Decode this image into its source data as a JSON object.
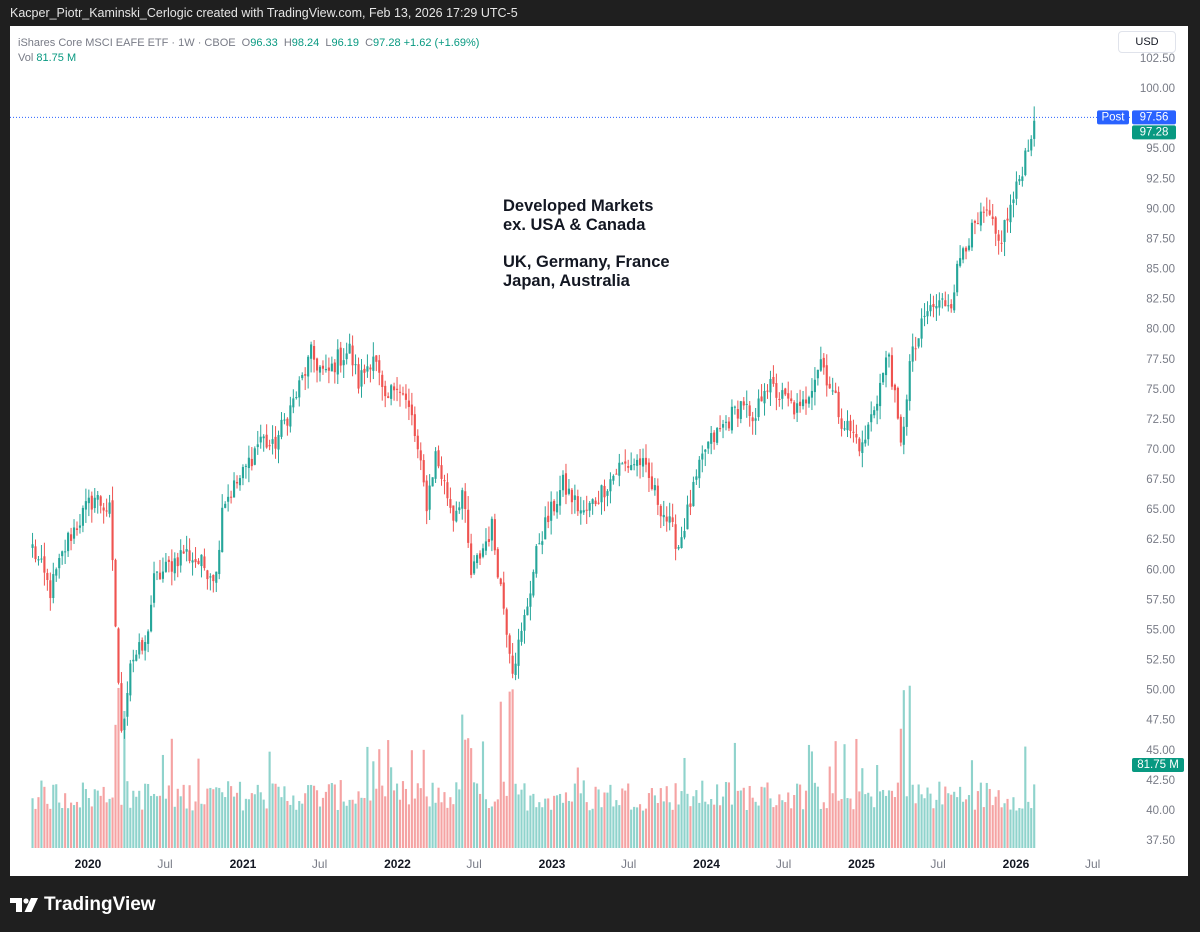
{
  "header": {
    "attribution": "Kacper_Piotr_Kaminski_Cerlogic created with TradingView.com, Feb 13, 2026 17:29 UTC-5"
  },
  "legend": {
    "symbol": "iShares Core MSCI EAFE ETF · 1W · CBOE",
    "open_label": "O",
    "open": "96.33",
    "high_label": "H",
    "high": "98.24",
    "low_label": "L",
    "low": "96.19",
    "close_label": "C",
    "close": "97.28",
    "change": "+1.62 (+1.69%)",
    "vol_label": "Vol",
    "vol": "81.75 M"
  },
  "currency_button": "USD",
  "annotation": {
    "line1": "Developed Markets",
    "line2": "ex. USA & Canada",
    "line3": "UK, Germany, France",
    "line4": "Japan, Australia"
  },
  "price_labels": {
    "post_tag": "Post",
    "post_value": "97.56",
    "last_value": "97.28",
    "volume_value": "81.75 M"
  },
  "footer": {
    "brand": "TradingView"
  },
  "colors": {
    "up": "#26a69a",
    "down": "#ef5350",
    "up_volume": "#8fd3cc",
    "down_volume": "#f5a3a3",
    "post_badge": "#2962ff",
    "last_badge": "#089981"
  },
  "chart_data": {
    "type": "candlestick",
    "interval": "1W",
    "y_axis": {
      "min": 37.5,
      "max": 102.5,
      "step": 2.5,
      "ticks": [
        "102.50",
        "100.00",
        "97.50",
        "95.00",
        "92.50",
        "90.00",
        "87.50",
        "85.00",
        "82.50",
        "80.00",
        "77.50",
        "75.00",
        "72.50",
        "70.00",
        "67.50",
        "65.00",
        "62.50",
        "60.00",
        "57.50",
        "55.00",
        "52.50",
        "50.00",
        "47.50",
        "45.00",
        "42.50",
        "40.00",
        "37.50"
      ]
    },
    "x_axis": {
      "ticks": [
        {
          "label": "2020",
          "date": "2020-01-01",
          "bold": true
        },
        {
          "label": "Jul",
          "date": "2020-07-01",
          "bold": false
        },
        {
          "label": "2021",
          "date": "2021-01-01",
          "bold": true
        },
        {
          "label": "Jul",
          "date": "2021-07-01",
          "bold": false
        },
        {
          "label": "2022",
          "date": "2022-01-01",
          "bold": true
        },
        {
          "label": "Jul",
          "date": "2022-07-01",
          "bold": false
        },
        {
          "label": "2023",
          "date": "2023-01-01",
          "bold": true
        },
        {
          "label": "Jul",
          "date": "2023-07-01",
          "bold": false
        },
        {
          "label": "2024",
          "date": "2024-01-01",
          "bold": true
        },
        {
          "label": "Jul",
          "date": "2024-07-01",
          "bold": false
        },
        {
          "label": "2025",
          "date": "2025-01-01",
          "bold": true
        },
        {
          "label": "Jul",
          "date": "2025-07-01",
          "bold": false
        },
        {
          "label": "2026",
          "date": "2026-01-01",
          "bold": true
        },
        {
          "label": "Jul",
          "date": "2026-07-01",
          "bold": false
        }
      ]
    },
    "grid": false,
    "price_anchors": [
      {
        "date": "2019-08-23",
        "price": 61.8
      },
      {
        "date": "2019-10-04",
        "price": 58.2
      },
      {
        "date": "2019-11-15",
        "price": 62.5
      },
      {
        "date": "2019-12-27",
        "price": 65.0
      },
      {
        "date": "2020-01-17",
        "price": 66.0
      },
      {
        "date": "2020-02-21",
        "price": 64.8
      },
      {
        "date": "2020-03-20",
        "price": 46.0
      },
      {
        "date": "2020-04-10",
        "price": 52.5
      },
      {
        "date": "2020-05-15",
        "price": 53.5
      },
      {
        "date": "2020-06-05",
        "price": 59.0
      },
      {
        "date": "2020-08-14",
        "price": 61.5
      },
      {
        "date": "2020-10-30",
        "price": 59.5
      },
      {
        "date": "2020-11-13",
        "price": 65.5
      },
      {
        "date": "2020-12-31",
        "price": 67.8
      },
      {
        "date": "2021-02-12",
        "price": 71.0
      },
      {
        "date": "2021-03-12",
        "price": 70.0
      },
      {
        "date": "2021-05-07",
        "price": 74.5
      },
      {
        "date": "2021-06-11",
        "price": 77.8
      },
      {
        "date": "2021-07-16",
        "price": 76.0
      },
      {
        "date": "2021-08-13",
        "price": 77.5
      },
      {
        "date": "2021-09-10",
        "price": 78.2
      },
      {
        "date": "2021-10-01",
        "price": 75.5
      },
      {
        "date": "2021-11-05",
        "price": 78.0
      },
      {
        "date": "2021-12-03",
        "price": 73.5
      },
      {
        "date": "2021-12-31",
        "price": 75.8
      },
      {
        "date": "2022-02-04",
        "price": 72.5
      },
      {
        "date": "2022-03-11",
        "price": 65.5
      },
      {
        "date": "2022-04-01",
        "price": 69.5
      },
      {
        "date": "2022-05-13",
        "price": 64.5
      },
      {
        "date": "2022-06-03",
        "price": 66.5
      },
      {
        "date": "2022-06-24",
        "price": 59.5
      },
      {
        "date": "2022-08-12",
        "price": 63.5
      },
      {
        "date": "2022-09-30",
        "price": 52.0
      },
      {
        "date": "2022-10-21",
        "price": 54.5
      },
      {
        "date": "2022-12-02",
        "price": 62.5
      },
      {
        "date": "2023-01-27",
        "price": 67.0
      },
      {
        "date": "2023-03-17",
        "price": 64.5
      },
      {
        "date": "2023-06-09",
        "price": 68.5
      },
      {
        "date": "2023-07-28",
        "price": 69.0
      },
      {
        "date": "2023-10-27",
        "price": 62.0
      },
      {
        "date": "2023-12-29",
        "price": 70.0
      },
      {
        "date": "2024-03-29",
        "price": 74.0
      },
      {
        "date": "2024-04-19",
        "price": 71.5
      },
      {
        "date": "2024-05-17",
        "price": 75.5
      },
      {
        "date": "2024-08-09",
        "price": 73.0
      },
      {
        "date": "2024-09-27",
        "price": 77.5
      },
      {
        "date": "2024-11-15",
        "price": 72.5
      },
      {
        "date": "2024-12-27",
        "price": 70.5
      },
      {
        "date": "2025-01-03",
        "price": 70.0
      },
      {
        "date": "2025-03-07",
        "price": 78.0
      },
      {
        "date": "2025-04-04",
        "price": 70.0
      },
      {
        "date": "2025-04-25",
        "price": 77.0
      },
      {
        "date": "2025-06-06",
        "price": 81.5
      },
      {
        "date": "2025-08-01",
        "price": 82.5
      },
      {
        "date": "2025-08-29",
        "price": 87.0
      },
      {
        "date": "2025-10-24",
        "price": 89.5
      },
      {
        "date": "2025-11-21",
        "price": 87.0
      },
      {
        "date": "2026-01-02",
        "price": 91.5
      },
      {
        "date": "2026-01-30",
        "price": 95.5
      },
      {
        "date": "2026-02-13",
        "price": 97.28
      }
    ]
  }
}
